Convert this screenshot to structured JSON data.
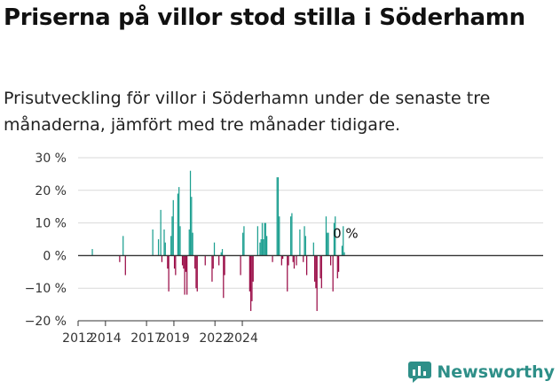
{
  "title": "Priserna på villor stod stilla i Söderhamn",
  "subtitle": "Prisutveckling för villor i Söderhamn under de senaste tre månaderna, jämfört med tre månader tidigare.",
  "brand": "Newsworthy",
  "colors": {
    "positive": "#1a9e8f",
    "negative": "#990a45",
    "zero_line": "#333333",
    "grid": "#d9d9d9",
    "brand": "#2e8f88"
  },
  "chart_data": {
    "type": "bar",
    "start_month": "2012-01",
    "annotation": "0 %",
    "y_ticks": [
      {
        "value": 30,
        "label": "30 %"
      },
      {
        "value": 20,
        "label": "20 %"
      },
      {
        "value": 10,
        "label": "10 %"
      },
      {
        "value": 0,
        "label": "0 %"
      },
      {
        "value": -10,
        "label": "−10 %"
      },
      {
        "value": -20,
        "label": "−20 %"
      }
    ],
    "x_ticks": [
      "2012",
      "2014",
      "2017",
      "2019",
      "2022",
      "2024"
    ],
    "ylim": [
      -20,
      30
    ],
    "values": [
      0,
      0,
      0,
      0,
      0,
      0,
      0,
      0,
      0,
      0,
      0,
      0,
      2,
      0,
      0,
      0,
      0,
      0,
      0,
      0,
      0,
      0,
      0,
      0,
      0,
      0,
      0,
      0,
      0,
      0,
      0,
      0,
      0,
      0,
      0,
      0,
      -2,
      0,
      0,
      6,
      0,
      -6,
      0,
      0,
      0,
      0,
      0,
      0,
      0,
      0,
      0,
      0,
      0,
      0,
      0,
      0,
      0,
      0,
      0,
      0,
      0,
      0,
      0,
      0,
      0,
      8,
      0,
      0,
      0,
      0,
      5,
      0,
      14,
      -2,
      0,
      8,
      4,
      0,
      -4,
      -11,
      0,
      6,
      12,
      17,
      -4,
      -6,
      0,
      19,
      21,
      9,
      0,
      -3,
      -4,
      -12,
      -5,
      -12,
      0,
      8,
      26,
      18,
      7,
      0,
      -4,
      -10,
      -11,
      0,
      0,
      0,
      0,
      0,
      0,
      -3,
      0,
      0,
      0,
      0,
      0,
      -8,
      -4,
      4,
      0,
      0,
      0,
      -3,
      0,
      1,
      2,
      -13,
      -6,
      0,
      0,
      0,
      0,
      0,
      0,
      0,
      0,
      0,
      0,
      0,
      0,
      0,
      -6,
      0,
      7,
      9,
      0,
      0,
      0,
      0,
      -11,
      -17,
      -14,
      -8,
      0,
      0,
      0,
      9,
      0,
      4,
      5,
      10,
      5,
      10,
      10,
      6,
      0,
      0,
      0,
      0,
      -2,
      0,
      0,
      0,
      24,
      24,
      12,
      0,
      -3,
      -1,
      0,
      0,
      0,
      -11,
      -3,
      0,
      12,
      13,
      -2,
      -4,
      0,
      -3,
      0,
      0,
      8,
      0,
      0,
      -2,
      9,
      6,
      -6,
      0,
      0,
      0,
      0,
      0,
      4,
      -8,
      -10,
      -17,
      0,
      0,
      -7,
      -10,
      0,
      0,
      0,
      12,
      7,
      7,
      0,
      -3,
      0,
      -11,
      10,
      12,
      0,
      -7,
      -5,
      0,
      0,
      3,
      9,
      1
    ]
  }
}
